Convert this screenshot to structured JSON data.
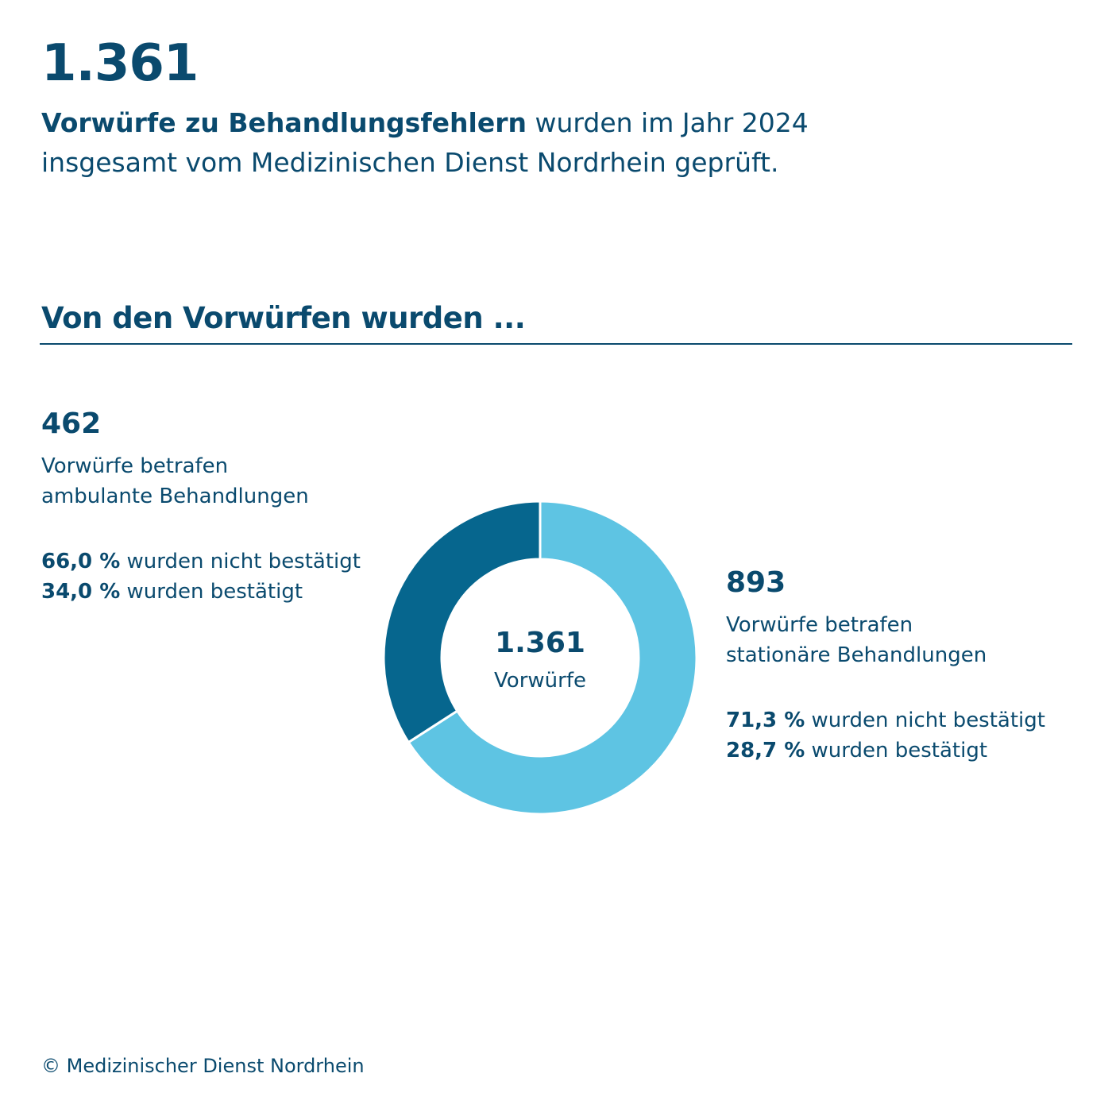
{
  "header": {
    "big_number": "1.361",
    "intro_bold": "Vorwürfe zu Behandlungsfehlern",
    "intro_line1_rest": " wurden im Jahr 2024",
    "intro_line2": "insgesamt vom Medizinischen Dienst Nordrhein geprüft."
  },
  "section_heading": "Von den Vorwürfen wurden ...",
  "left_group": {
    "count": "462",
    "desc_line1": "Vorwürfe betrafen",
    "desc_line2": "ambulante Behandlungen",
    "stat1_pct": "66,0 %",
    "stat1_text": " wurden nicht bestätigt",
    "stat2_pct": "34,0 %",
    "stat2_text": " wurden bestätigt"
  },
  "right_group": {
    "count": "893",
    "desc_line1": "Vorwürfe betrafen",
    "desc_line2": "stationäre Behandlungen",
    "stat1_pct": "71,3 %",
    "stat1_text": " wurden nicht bestätigt",
    "stat2_pct": "28,7 %",
    "stat2_text": " wurden bestätigt"
  },
  "center": {
    "value": "1.361",
    "caption": "Vorwürfe"
  },
  "footer": "© Medizinischer Dienst Nordrhein",
  "colors": {
    "text": "#0a4a6e",
    "stationaer": "#5ec4e3",
    "ambulant": "#06668e"
  },
  "chart_data": {
    "type": "pie",
    "variant": "donut",
    "total": 1361,
    "slices": [
      {
        "label": "stationäre Behandlungen",
        "value": 893,
        "color": "#5ec4e3"
      },
      {
        "label": "ambulante Behandlungen",
        "value": 462,
        "color": "#06668e"
      }
    ],
    "start_angle": "top",
    "direction": "clockwise"
  }
}
